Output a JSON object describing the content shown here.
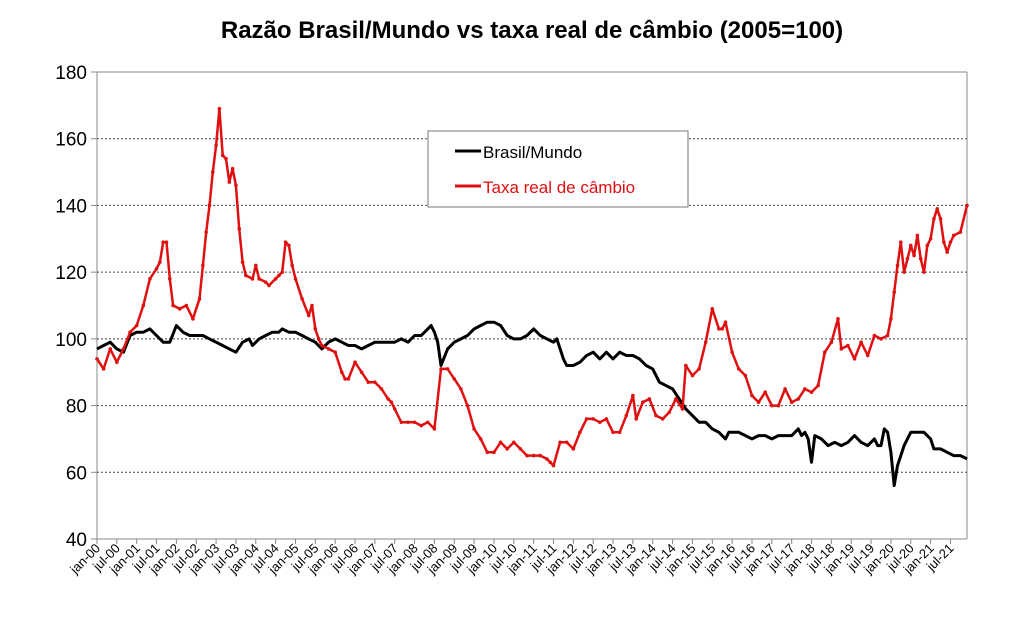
{
  "chart_data": {
    "type": "line",
    "title": "Razão Brasil/Mundo vs taxa real de câmbio (2005=100)",
    "xlabel": "",
    "ylabel": "",
    "ylim": [
      40,
      180
    ],
    "yticks": [
      40,
      60,
      80,
      100,
      120,
      140,
      160,
      180
    ],
    "x_unit": "months since jan-00",
    "xlim": [
      0,
      263
    ],
    "xtick_labels": [
      "jan-00",
      "jul-00",
      "jan-01",
      "jul-01",
      "jan-02",
      "jul-02",
      "jan-03",
      "jul-03",
      "jan-04",
      "jul-04",
      "jan-05",
      "jul-05",
      "jan-06",
      "jul-06",
      "jan-07",
      "jul-07",
      "jan-08",
      "jul-08",
      "jan-09",
      "jul-09",
      "jan-10",
      "jul-10",
      "jan-11",
      "jul-11",
      "jan-12",
      "jul-12",
      "jan-13",
      "jul-13",
      "jan-14",
      "jul-14",
      "jan-15",
      "jul-15",
      "jan-16",
      "jul-16",
      "jan-17",
      "jul-17",
      "jan-18",
      "jul-18",
      "jan-19",
      "jul-19",
      "jan-20",
      "jul-20",
      "jan-21",
      "jul-21"
    ],
    "grid": "horizontal dotted",
    "legend": "top-center",
    "series": [
      {
        "name": "Brasil/Mundo",
        "color": "#000000",
        "points": [
          [
            0,
            97
          ],
          [
            2,
            98
          ],
          [
            4,
            99
          ],
          [
            6,
            97
          ],
          [
            8,
            96
          ],
          [
            10,
            101
          ],
          [
            12,
            102
          ],
          [
            14,
            102
          ],
          [
            16,
            103
          ],
          [
            18,
            101
          ],
          [
            20,
            99
          ],
          [
            22,
            99
          ],
          [
            24,
            104
          ],
          [
            26,
            102
          ],
          [
            28,
            101
          ],
          [
            30,
            101
          ],
          [
            32,
            101
          ],
          [
            34,
            100
          ],
          [
            36,
            99
          ],
          [
            38,
            98
          ],
          [
            40,
            97
          ],
          [
            42,
            96
          ],
          [
            44,
            99
          ],
          [
            46,
            100
          ],
          [
            47,
            98
          ],
          [
            49,
            100
          ],
          [
            51,
            101
          ],
          [
            53,
            102
          ],
          [
            55,
            102
          ],
          [
            56,
            103
          ],
          [
            58,
            102
          ],
          [
            60,
            102
          ],
          [
            62,
            101
          ],
          [
            64,
            100
          ],
          [
            66,
            99
          ],
          [
            68,
            97
          ],
          [
            70,
            99
          ],
          [
            72,
            100
          ],
          [
            74,
            99
          ],
          [
            76,
            98
          ],
          [
            78,
            98
          ],
          [
            80,
            97
          ],
          [
            82,
            98
          ],
          [
            84,
            99
          ],
          [
            86,
            99
          ],
          [
            88,
            99
          ],
          [
            90,
            99
          ],
          [
            92,
            100
          ],
          [
            94,
            99
          ],
          [
            96,
            101
          ],
          [
            98,
            101
          ],
          [
            100,
            103
          ],
          [
            101,
            104
          ],
          [
            102,
            102
          ],
          [
            103,
            99
          ],
          [
            104,
            92
          ],
          [
            106,
            97
          ],
          [
            108,
            99
          ],
          [
            110,
            100
          ],
          [
            112,
            101
          ],
          [
            114,
            103
          ],
          [
            116,
            104
          ],
          [
            118,
            105
          ],
          [
            120,
            105
          ],
          [
            122,
            104
          ],
          [
            124,
            101
          ],
          [
            126,
            100
          ],
          [
            128,
            100
          ],
          [
            130,
            101
          ],
          [
            132,
            103
          ],
          [
            134,
            101
          ],
          [
            136,
            100
          ],
          [
            138,
            99
          ],
          [
            139,
            100
          ],
          [
            140,
            97
          ],
          [
            141,
            94
          ],
          [
            142,
            92
          ],
          [
            144,
            92
          ],
          [
            146,
            93
          ],
          [
            148,
            95
          ],
          [
            150,
            96
          ],
          [
            152,
            94
          ],
          [
            154,
            96
          ],
          [
            156,
            94
          ],
          [
            158,
            96
          ],
          [
            160,
            95
          ],
          [
            162,
            95
          ],
          [
            164,
            94
          ],
          [
            166,
            92
          ],
          [
            168,
            91
          ],
          [
            170,
            87
          ],
          [
            172,
            86
          ],
          [
            174,
            85
          ],
          [
            176,
            82
          ],
          [
            178,
            79
          ],
          [
            180,
            77
          ],
          [
            182,
            75
          ],
          [
            184,
            75
          ],
          [
            186,
            73
          ],
          [
            188,
            72
          ],
          [
            190,
            70
          ],
          [
            191,
            72
          ],
          [
            194,
            72
          ],
          [
            196,
            71
          ],
          [
            198,
            70
          ],
          [
            200,
            71
          ],
          [
            202,
            71
          ],
          [
            204,
            70
          ],
          [
            206,
            71
          ],
          [
            208,
            71
          ],
          [
            210,
            71
          ],
          [
            212,
            73
          ],
          [
            213,
            71
          ],
          [
            214,
            72
          ],
          [
            215,
            70
          ],
          [
            216,
            63
          ],
          [
            217,
            71
          ],
          [
            219,
            70
          ],
          [
            221,
            68
          ],
          [
            223,
            69
          ],
          [
            225,
            68
          ],
          [
            227,
            69
          ],
          [
            229,
            71
          ],
          [
            231,
            69
          ],
          [
            233,
            68
          ],
          [
            235,
            70
          ],
          [
            236,
            68
          ],
          [
            237,
            68
          ],
          [
            238,
            73
          ],
          [
            239,
            72
          ],
          [
            240,
            66
          ],
          [
            241,
            56
          ],
          [
            242,
            62
          ],
          [
            244,
            68
          ],
          [
            246,
            72
          ],
          [
            248,
            72
          ],
          [
            250,
            72
          ],
          [
            252,
            70
          ],
          [
            253,
            67
          ],
          [
            255,
            67
          ],
          [
            257,
            66
          ],
          [
            259,
            65
          ],
          [
            261,
            65
          ],
          [
            263,
            64
          ]
        ]
      },
      {
        "name": "Taxa real de câmbio",
        "color": "#e01010",
        "points": [
          [
            0,
            94
          ],
          [
            2,
            91
          ],
          [
            4,
            97
          ],
          [
            6,
            93
          ],
          [
            8,
            97
          ],
          [
            10,
            102
          ],
          [
            12,
            104
          ],
          [
            14,
            110
          ],
          [
            16,
            118
          ],
          [
            18,
            121
          ],
          [
            19,
            123
          ],
          [
            20,
            129
          ],
          [
            21,
            129
          ],
          [
            22,
            118
          ],
          [
            23,
            110
          ],
          [
            25,
            109
          ],
          [
            27,
            110
          ],
          [
            29,
            106
          ],
          [
            31,
            112
          ],
          [
            32,
            122
          ],
          [
            33,
            132
          ],
          [
            34,
            140
          ],
          [
            35,
            150
          ],
          [
            36,
            158
          ],
          [
            37,
            169
          ],
          [
            38,
            155
          ],
          [
            39,
            154
          ],
          [
            40,
            147
          ],
          [
            41,
            151
          ],
          [
            42,
            146
          ],
          [
            43,
            133
          ],
          [
            44,
            123
          ],
          [
            45,
            119
          ],
          [
            47,
            118
          ],
          [
            48,
            122
          ],
          [
            49,
            118
          ],
          [
            51,
            117
          ],
          [
            52,
            116
          ],
          [
            54,
            118
          ],
          [
            55,
            119
          ],
          [
            56,
            120
          ],
          [
            57,
            129
          ],
          [
            58,
            128
          ],
          [
            59,
            122
          ],
          [
            60,
            118
          ],
          [
            62,
            112
          ],
          [
            64,
            107
          ],
          [
            65,
            110
          ],
          [
            66,
            103
          ],
          [
            67,
            100
          ],
          [
            68,
            98
          ],
          [
            70,
            97
          ],
          [
            72,
            96
          ],
          [
            74,
            90
          ],
          [
            75,
            88
          ],
          [
            76,
            88
          ],
          [
            78,
            93
          ],
          [
            80,
            90
          ],
          [
            82,
            87
          ],
          [
            84,
            87
          ],
          [
            86,
            85
          ],
          [
            88,
            82
          ],
          [
            89,
            81
          ],
          [
            90,
            79
          ],
          [
            92,
            75
          ],
          [
            94,
            75
          ],
          [
            96,
            75
          ],
          [
            98,
            74
          ],
          [
            100,
            75
          ],
          [
            102,
            73
          ],
          [
            104,
            91
          ],
          [
            106,
            91
          ],
          [
            108,
            88
          ],
          [
            110,
            85
          ],
          [
            112,
            80
          ],
          [
            114,
            73
          ],
          [
            116,
            70
          ],
          [
            118,
            66
          ],
          [
            120,
            66
          ],
          [
            122,
            69
          ],
          [
            124,
            67
          ],
          [
            126,
            69
          ],
          [
            128,
            67
          ],
          [
            130,
            65
          ],
          [
            132,
            65
          ],
          [
            134,
            65
          ],
          [
            136,
            64
          ],
          [
            137,
            63
          ],
          [
            138,
            62
          ],
          [
            140,
            69
          ],
          [
            142,
            69
          ],
          [
            144,
            67
          ],
          [
            146,
            72
          ],
          [
            148,
            76
          ],
          [
            150,
            76
          ],
          [
            152,
            75
          ],
          [
            154,
            76
          ],
          [
            156,
            72
          ],
          [
            158,
            72
          ],
          [
            160,
            77
          ],
          [
            162,
            83
          ],
          [
            163,
            76
          ],
          [
            165,
            81
          ],
          [
            167,
            82
          ],
          [
            169,
            77
          ],
          [
            171,
            76
          ],
          [
            173,
            78
          ],
          [
            175,
            82
          ],
          [
            177,
            79
          ],
          [
            178,
            92
          ],
          [
            180,
            89
          ],
          [
            182,
            91
          ],
          [
            184,
            99
          ],
          [
            186,
            109
          ],
          [
            188,
            103
          ],
          [
            189,
            103
          ],
          [
            190,
            105
          ],
          [
            192,
            96
          ],
          [
            194,
            91
          ],
          [
            196,
            89
          ],
          [
            198,
            83
          ],
          [
            200,
            81
          ],
          [
            202,
            84
          ],
          [
            204,
            80
          ],
          [
            206,
            80
          ],
          [
            208,
            85
          ],
          [
            210,
            81
          ],
          [
            212,
            82
          ],
          [
            214,
            85
          ],
          [
            216,
            84
          ],
          [
            218,
            86
          ],
          [
            220,
            96
          ],
          [
            222,
            99
          ],
          [
            224,
            106
          ],
          [
            225,
            97
          ],
          [
            227,
            98
          ],
          [
            229,
            94
          ],
          [
            231,
            99
          ],
          [
            233,
            95
          ],
          [
            235,
            101
          ],
          [
            237,
            100
          ],
          [
            239,
            101
          ],
          [
            240,
            106
          ],
          [
            241,
            114
          ],
          [
            242,
            122
          ],
          [
            243,
            129
          ],
          [
            244,
            120
          ],
          [
            245,
            124
          ],
          [
            246,
            128
          ],
          [
            247,
            125
          ],
          [
            248,
            131
          ],
          [
            249,
            124
          ],
          [
            250,
            120
          ],
          [
            251,
            128
          ],
          [
            252,
            130
          ],
          [
            253,
            136
          ],
          [
            254,
            139
          ],
          [
            255,
            136
          ],
          [
            256,
            129
          ],
          [
            257,
            126
          ],
          [
            258,
            129
          ],
          [
            259,
            131
          ],
          [
            261,
            132
          ],
          [
            263,
            140
          ]
        ]
      }
    ]
  }
}
